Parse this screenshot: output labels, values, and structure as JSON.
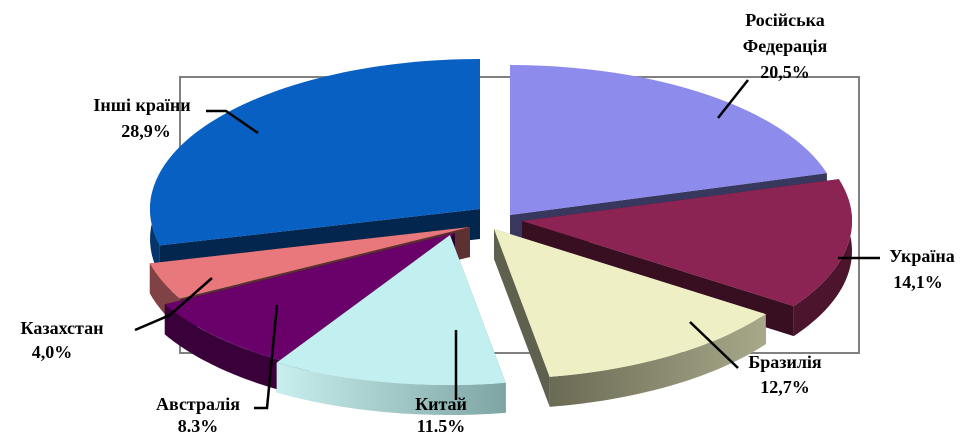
{
  "chart_data": {
    "type": "pie",
    "style": "3d-exploded",
    "slices": [
      {
        "label": "Російська Федерація",
        "value": 20.5,
        "value_label": "20,5%",
        "color": "#8d8ced"
      },
      {
        "label": "Україна",
        "value": 14.1,
        "value_label": "14,1%",
        "color": "#8b2452"
      },
      {
        "label": "Бразилія",
        "value": 12.7,
        "value_label": "12,7%",
        "color": "#efefc6"
      },
      {
        "label": "Китай",
        "value": 11.5,
        "value_label": "11.5%",
        "color": "#c2efef"
      },
      {
        "label": "Австралія",
        "value": 8.3,
        "value_label": "8.3%",
        "color": "#6a006a"
      },
      {
        "label": "Казахстан",
        "value": 4.0,
        "value_label": "4,0%",
        "color": "#e8787c"
      },
      {
        "label": "Інші країни",
        "value": 28.9,
        "value_label": "28,9%",
        "color": "#0760c2"
      }
    ],
    "legend": "none",
    "labels_position": "outside-with-leader-lines"
  }
}
